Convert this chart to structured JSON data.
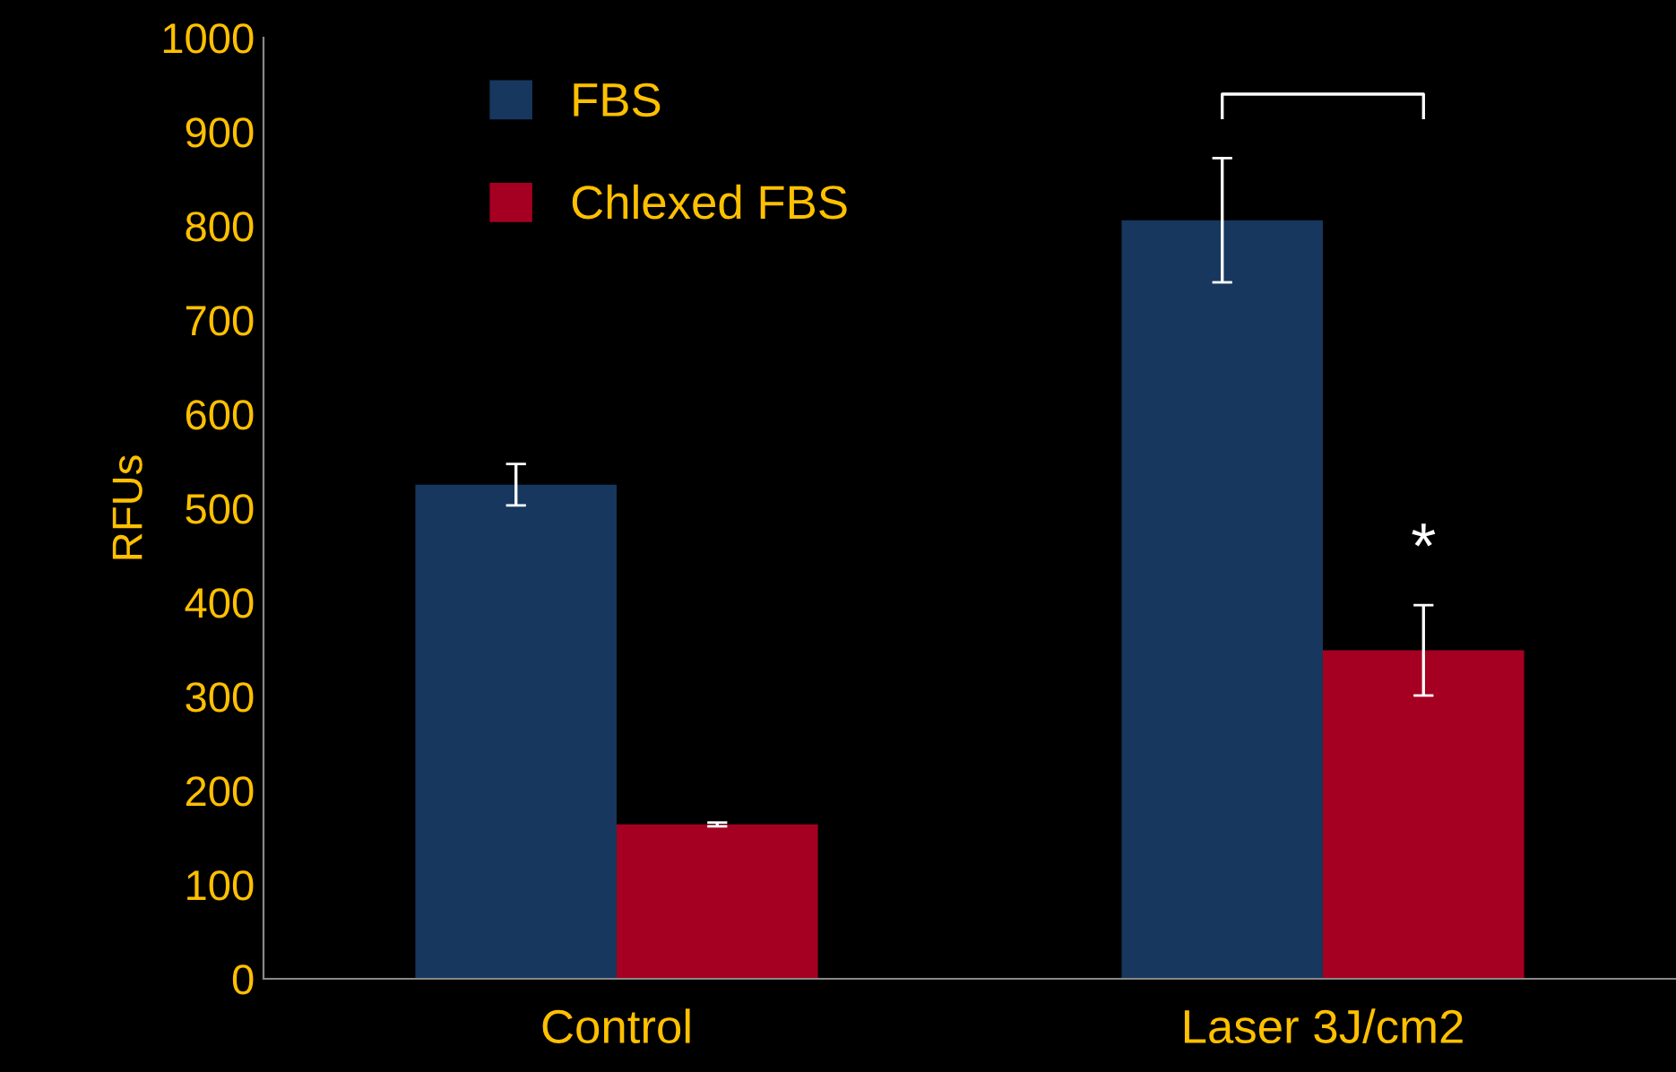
{
  "chart_data": {
    "type": "bar",
    "ylabel": "RFUs",
    "categories": [
      "Control",
      "Laser 3J/cm2"
    ],
    "series": [
      {
        "name": "FBS",
        "color": "#17375e",
        "values": [
          525,
          806
        ],
        "errors": [
          22,
          66
        ]
      },
      {
        "name": "Chlexed FBS",
        "color": "#a50021",
        "values": [
          164,
          349
        ],
        "errors": [
          2,
          48
        ]
      }
    ],
    "ylim": [
      0,
      1000
    ],
    "yticks": [
      0,
      100,
      200,
      300,
      400,
      500,
      600,
      700,
      800,
      900,
      1000
    ],
    "annotations": [
      "*"
    ],
    "legend": "top left",
    "grid": false
  }
}
